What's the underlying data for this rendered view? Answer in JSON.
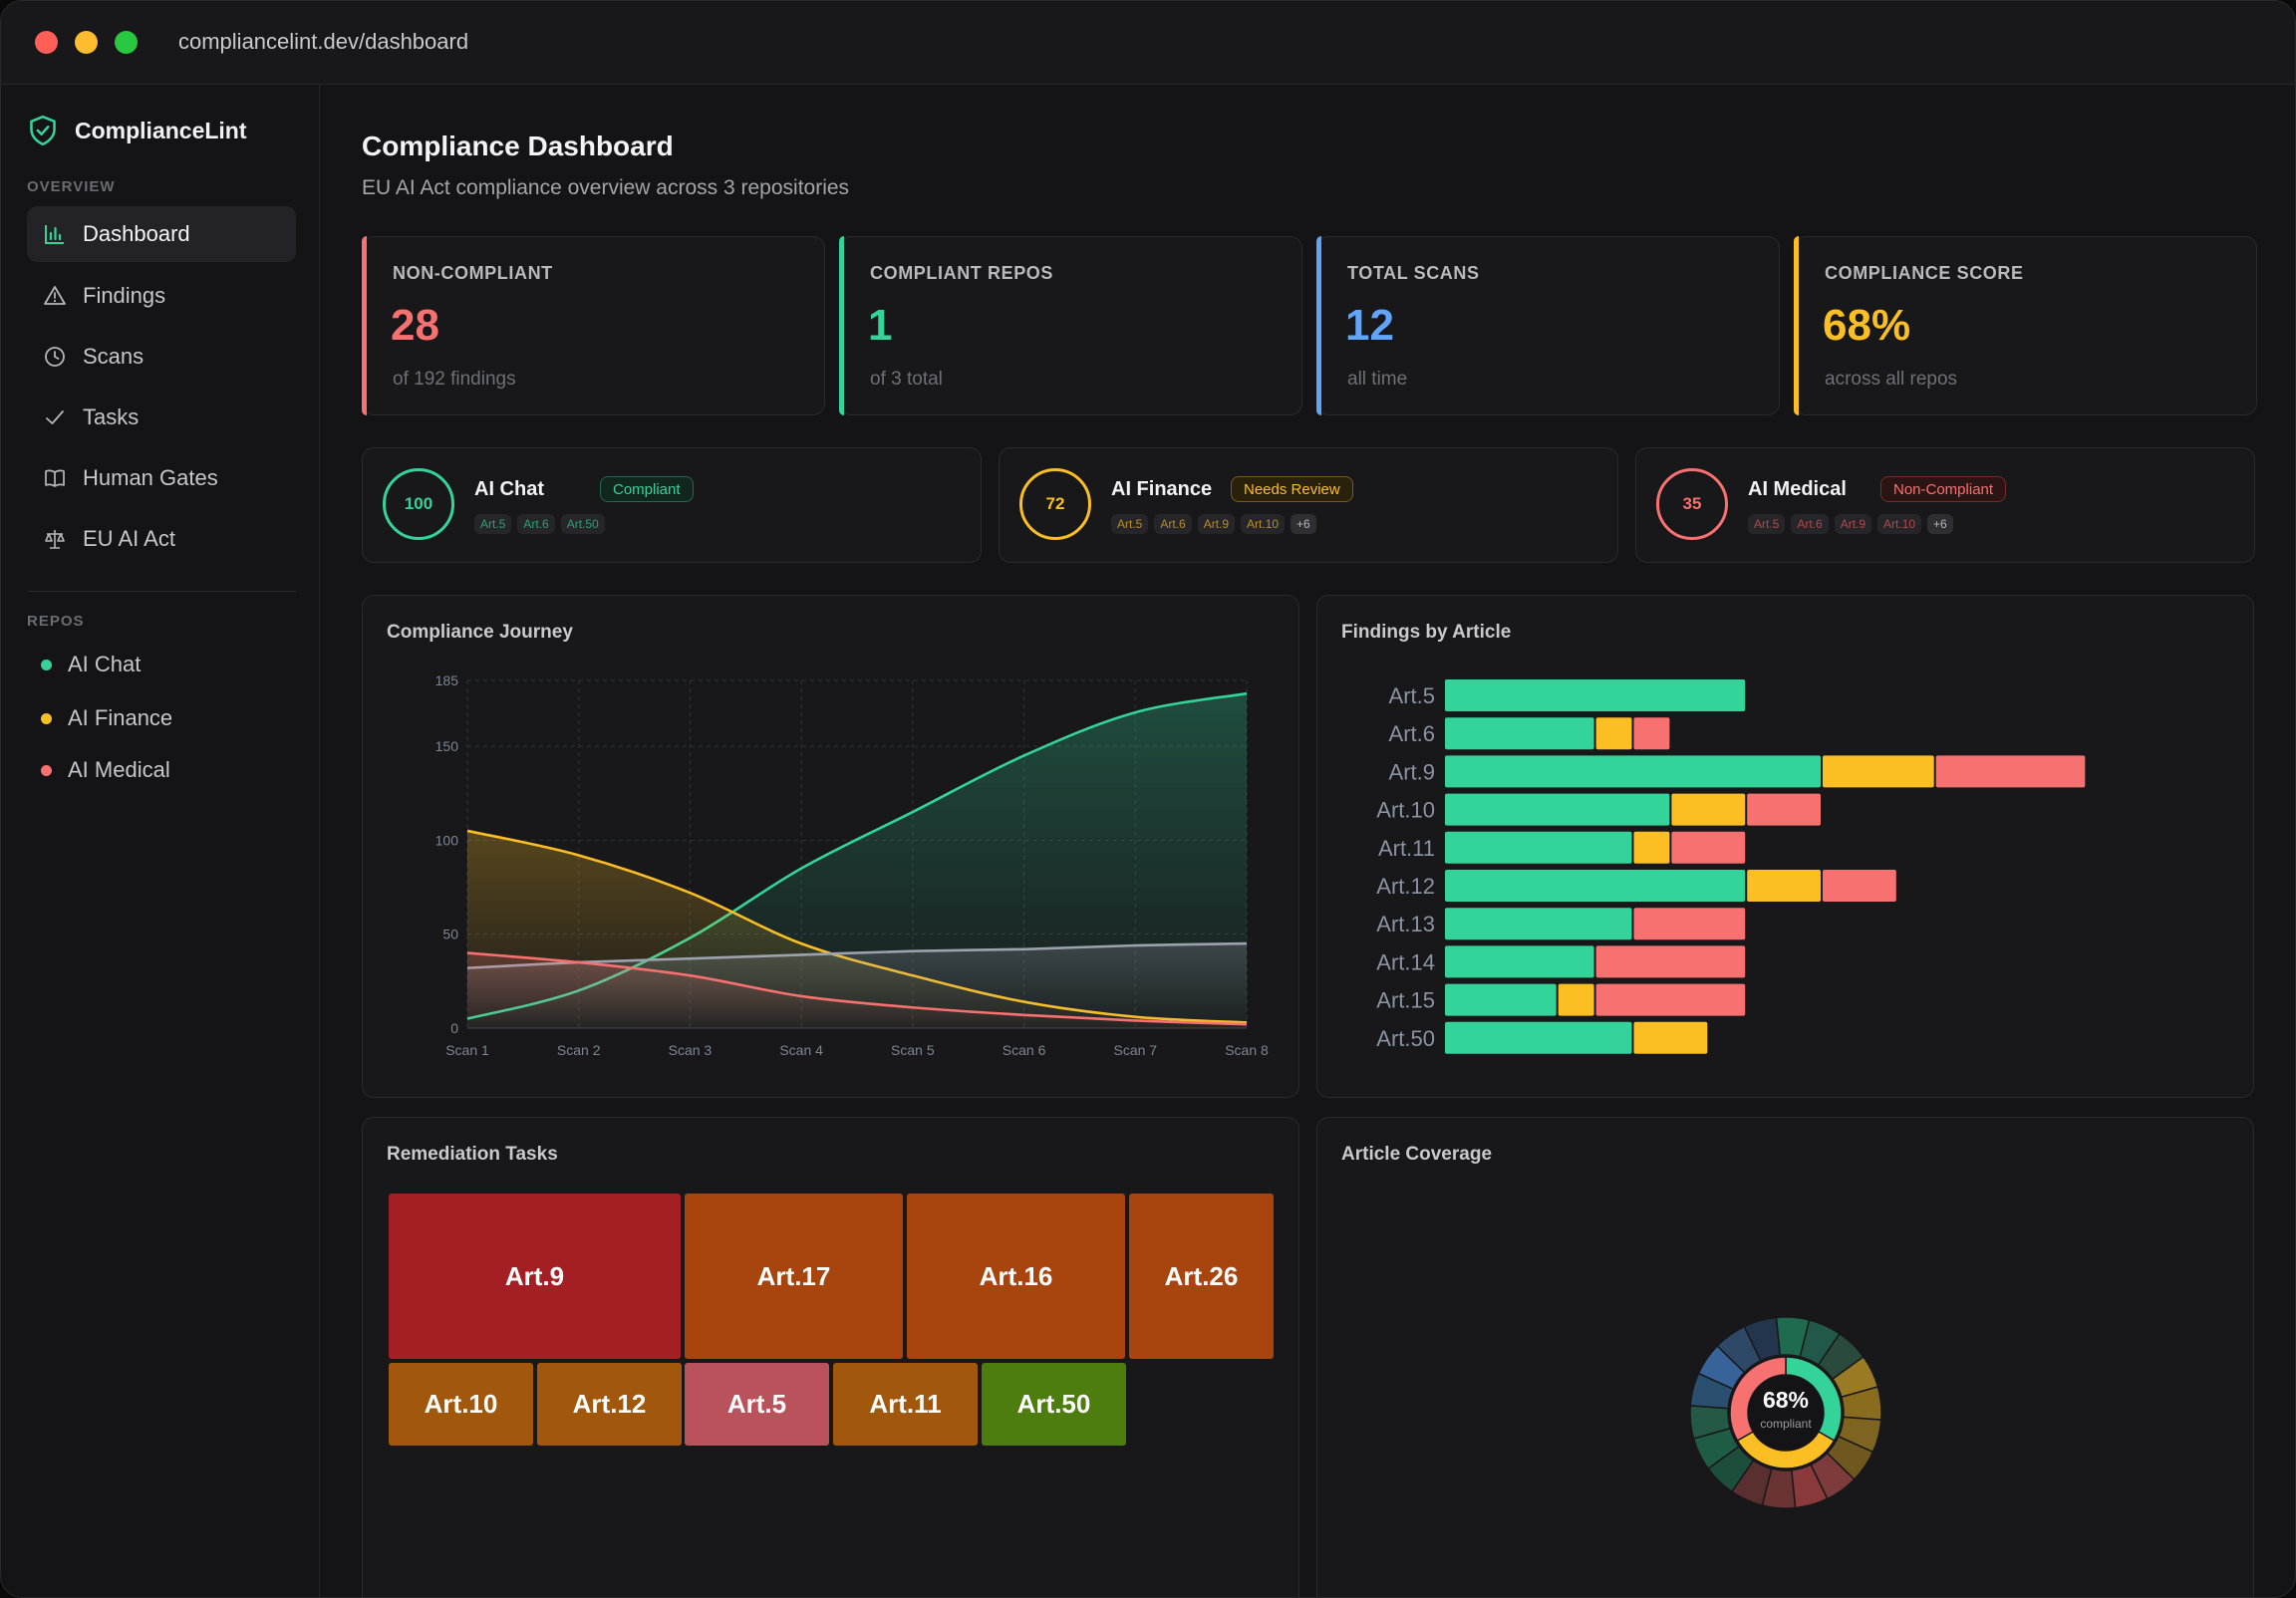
{
  "browser": {
    "url": "compliancelint.dev/dashboard"
  },
  "sidebar": {
    "brand": "ComplianceLint",
    "overview_label": "OVERVIEW",
    "nav": [
      {
        "label": "Dashboard",
        "icon": "bar-chart-icon",
        "active": true
      },
      {
        "label": "Findings",
        "icon": "warning-triangle-icon"
      },
      {
        "label": "Scans",
        "icon": "clock-icon"
      },
      {
        "label": "Tasks",
        "icon": "check-icon"
      },
      {
        "label": "Human Gates",
        "icon": "book-icon"
      },
      {
        "label": "EU AI Act",
        "icon": "scale-icon"
      }
    ],
    "repos_label": "REPOS",
    "repos": [
      {
        "label": "AI Chat",
        "color": "#34d399"
      },
      {
        "label": "AI Finance",
        "color": "#fbbf24"
      },
      {
        "label": "AI Medical",
        "color": "#f87171"
      }
    ]
  },
  "header": {
    "title": "Compliance Dashboard",
    "subtitle": "EU AI Act compliance overview across 3 repositories"
  },
  "stats": [
    {
      "label": "NON-COMPLIANT",
      "value": "28",
      "sub": "of 192 findings",
      "color": "#f87171"
    },
    {
      "label": "COMPLIANT REPOS",
      "value": "1",
      "sub": "of 3 total",
      "color": "#34d399"
    },
    {
      "label": "TOTAL SCANS",
      "value": "12",
      "sub": "all time",
      "color": "#60a5fa"
    },
    {
      "label": "COMPLIANCE SCORE",
      "value": "68%",
      "sub": "across all repos",
      "color": "#fbbf24"
    }
  ],
  "repo_cards": [
    {
      "name": "AI Chat",
      "score": "100",
      "status": "Compliant",
      "color": "#34d399",
      "chips": [
        "Art.5",
        "Art.6",
        "Art.50"
      ],
      "more": ""
    },
    {
      "name": "AI Finance",
      "score": "72",
      "status": "Needs Review",
      "color": "#fbbf24",
      "chips": [
        "Art.5",
        "Art.6",
        "Art.9",
        "Art.10"
      ],
      "more": "+6"
    },
    {
      "name": "AI Medical",
      "score": "35",
      "status": "Non-Compliant",
      "color": "#f87171",
      "chips": [
        "Art.5",
        "Art.6",
        "Art.9",
        "Art.10"
      ],
      "more": "+6"
    }
  ],
  "chart_data": [
    {
      "type": "area",
      "title": "Compliance Journey",
      "categories": [
        "Scan 1",
        "Scan 2",
        "Scan 3",
        "Scan 4",
        "Scan 5",
        "Scan 6",
        "Scan 7",
        "Scan 8"
      ],
      "ylim": [
        0,
        185
      ],
      "yticks": [
        0,
        50,
        100,
        150,
        185
      ],
      "grid": true,
      "series": [
        {
          "color": "#34d399",
          "values": [
            5,
            20,
            48,
            85,
            115,
            145,
            168,
            178
          ]
        },
        {
          "color": "#fbbf24",
          "values": [
            105,
            92,
            72,
            45,
            28,
            14,
            6,
            3
          ]
        },
        {
          "color": "#9ca3af",
          "values": [
            32,
            35,
            37,
            39,
            41,
            42,
            44,
            45
          ]
        },
        {
          "color": "#f87171",
          "values": [
            40,
            35,
            28,
            17,
            11,
            7,
            4,
            2
          ]
        }
      ]
    },
    {
      "type": "bar",
      "orientation": "horizontal",
      "stacked": true,
      "title": "Findings by Article",
      "categories": [
        "Art.5",
        "Art.6",
        "Art.9",
        "Art.10",
        "Art.11",
        "Art.12",
        "Art.13",
        "Art.14",
        "Art.15",
        "Art.50"
      ],
      "series": [
        {
          "color": "#34d399",
          "values": [
            8,
            4,
            10,
            6,
            5,
            8,
            5,
            4,
            3,
            5
          ]
        },
        {
          "color": "#fbbf24",
          "values": [
            0,
            1,
            3,
            2,
            1,
            2,
            0,
            0,
            1,
            2
          ]
        },
        {
          "color": "#f87171",
          "values": [
            0,
            1,
            4,
            2,
            2,
            2,
            3,
            4,
            4,
            0
          ]
        }
      ]
    },
    {
      "type": "treemap",
      "title": "Remediation Tasks",
      "items": [
        {
          "label": "Art.9",
          "color": "#a31f24"
        },
        {
          "label": "Art.17",
          "color": "#a8440d"
        },
        {
          "label": "Art.16",
          "color": "#a8440d"
        },
        {
          "label": "Art.26",
          "color": "#a8440d"
        },
        {
          "label": "Art.10",
          "color": "#a1580c"
        },
        {
          "label": "Art.12",
          "color": "#a1580c"
        },
        {
          "label": "Art.5",
          "color": "#b9525a"
        },
        {
          "label": "Art.11",
          "color": "#a1580c"
        },
        {
          "label": "Art.50",
          "color": "#4d7c0f"
        }
      ]
    },
    {
      "type": "pie",
      "variant": "sunburst",
      "title": "Article Coverage",
      "center_value": "68%",
      "center_label": "compliant",
      "inner": [
        {
          "color": "#34d399",
          "value": 1
        },
        {
          "color": "#fbbf24",
          "value": 1
        },
        {
          "color": "#f87171",
          "value": 1
        }
      ],
      "outer": [
        {
          "color": "#1f6b4f",
          "value": 1
        },
        {
          "color": "#22584a",
          "value": 1
        },
        {
          "color": "#2a4a3c",
          "value": 1
        },
        {
          "color": "#9a7a22",
          "value": 1
        },
        {
          "color": "#8a6c1e",
          "value": 1
        },
        {
          "color": "#7d6420",
          "value": 1
        },
        {
          "color": "#6e5820",
          "value": 1
        },
        {
          "color": "#7d3b3b",
          "value": 1
        },
        {
          "color": "#8a3a3a",
          "value": 1
        },
        {
          "color": "#6b3434",
          "value": 1
        },
        {
          "color": "#5a2f30",
          "value": 1
        },
        {
          "color": "#1d4d3b",
          "value": 1
        },
        {
          "color": "#1f5c44",
          "value": 1
        },
        {
          "color": "#245a45",
          "value": 1
        },
        {
          "color": "#2b4f6e",
          "value": 1
        },
        {
          "color": "#37639a",
          "value": 1
        },
        {
          "color": "#2e4868",
          "value": 1
        },
        {
          "color": "#23344d",
          "value": 1
        }
      ]
    }
  ]
}
